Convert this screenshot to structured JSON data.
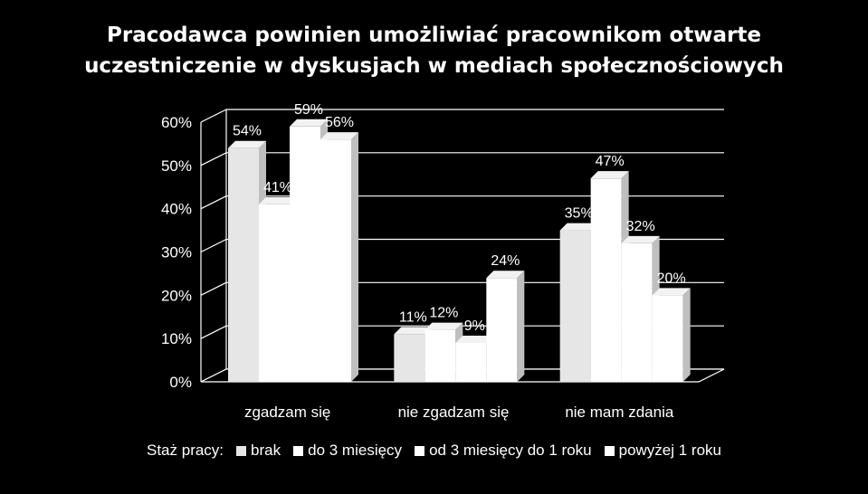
{
  "chart_data": {
    "type": "bar",
    "title_lines": [
      "Pracodawca powinien umożliwiać pracownikom otwarte",
      "uczestniczenie w dyskusjach w mediach społecznościowych"
    ],
    "categories": [
      "zgadzam się",
      "nie zgadzam się",
      "nie mam zdania"
    ],
    "series": [
      {
        "name": "brak",
        "values": [
          54,
          11,
          35
        ],
        "color": "#e6e6e6"
      },
      {
        "name": "do 3 miesięcy",
        "values": [
          41,
          12,
          47
        ],
        "color": "#ffffff"
      },
      {
        "name": "od 3 miesięcy do 1 roku",
        "values": [
          59,
          9,
          32
        ],
        "color": "#ffffff"
      },
      {
        "name": "powyżej 1 roku",
        "values": [
          56,
          24,
          20
        ],
        "color": "#ffffff"
      }
    ],
    "value_labels": [
      [
        "54%",
        "11%",
        "35%"
      ],
      [
        "41%",
        "12%",
        "47%"
      ],
      [
        "59%",
        "9%",
        "32%"
      ],
      [
        "56%",
        "24%",
        "20%"
      ]
    ],
    "y_ticks": [
      "0%",
      "10%",
      "20%",
      "30%",
      "40%",
      "50%",
      "60%"
    ],
    "ylim": [
      0,
      60
    ],
    "grid": true,
    "legend_position": "bottom",
    "legend_title": "Staż pracy:"
  }
}
